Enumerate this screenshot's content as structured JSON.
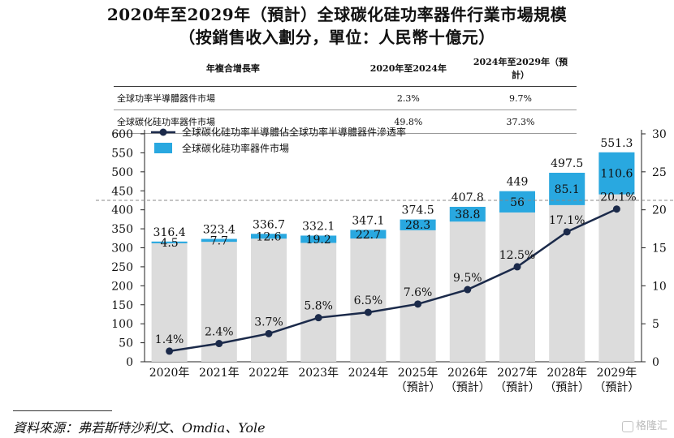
{
  "title": {
    "line1": "2020年至2029年（預計）全球碳化硅功率器件行業市場規模",
    "line2": "（按銷售收入劃分，單位：人民幣十億元）"
  },
  "cagr_table": {
    "header": [
      "年複合增長率",
      "2020年至2024年",
      "2024年至2029年（預計）"
    ],
    "rows": [
      [
        "全球功率半導體器件市場",
        "2.3%",
        "9.7%"
      ],
      [
        "全球碳化硅功率器件市場",
        "49.8%",
        "37.3%"
      ]
    ]
  },
  "chart_data": {
    "type": "bar",
    "categories": [
      "2020年",
      "2021年",
      "2022年",
      "2023年",
      "2024年",
      "2025年",
      "2026年",
      "2027年",
      "2028年",
      "2029年"
    ],
    "category_notes": [
      "",
      "",
      "",
      "",
      "",
      "（預計）",
      "（預計）",
      "（預計）",
      "（預計）",
      "（預計）"
    ],
    "series": [
      {
        "name": "全球功率半導體器件市場",
        "kind": "bar-total",
        "color": "#dcdcdc",
        "values": [
          316.4,
          323.4,
          336.7,
          332.1,
          347.1,
          374.5,
          407.8,
          449.0,
          497.5,
          551.3
        ]
      },
      {
        "name": "全球碳化硅功率器件市場",
        "kind": "bar-segment",
        "color": "#29a8e0",
        "values": [
          4.5,
          7.7,
          12.6,
          19.2,
          22.7,
          28.3,
          38.8,
          56.0,
          85.1,
          110.6
        ]
      },
      {
        "name": "全球碳化硅功率半導體佔全球功率半導體器件滲透率",
        "kind": "line",
        "axis": "right",
        "color": "#1b2a4a",
        "values": [
          1.4,
          2.4,
          3.7,
          5.8,
          6.5,
          7.6,
          9.5,
          12.5,
          17.1,
          20.1
        ],
        "labels": [
          "1.4%",
          "2.4%",
          "3.7%",
          "5.8%",
          "6.5%",
          "7.6%",
          "9.5%",
          "12.5%",
          "17.1%",
          "20.1%"
        ]
      }
    ],
    "ylim": [
      0,
      600
    ],
    "yticks": [
      0,
      50,
      100,
      150,
      200,
      250,
      300,
      350,
      400,
      450,
      500,
      550,
      600
    ],
    "y2lim": [
      0,
      30
    ],
    "y2ticks": [
      0,
      5,
      10,
      15,
      20,
      25,
      30
    ],
    "legend": [
      {
        "label": "全球碳化硅功率半導體佔全球功率半導體器件滲透率",
        "kind": "line"
      },
      {
        "label": "全球碳化硅功率器件市場",
        "kind": "box"
      }
    ],
    "legend_position": "top-left",
    "reference_line": {
      "axis": "left",
      "value": 425,
      "style": "dashed"
    }
  },
  "source": "資料來源：弗若斯特沙利文、Omdia、Yole",
  "watermark": "格隆汇"
}
